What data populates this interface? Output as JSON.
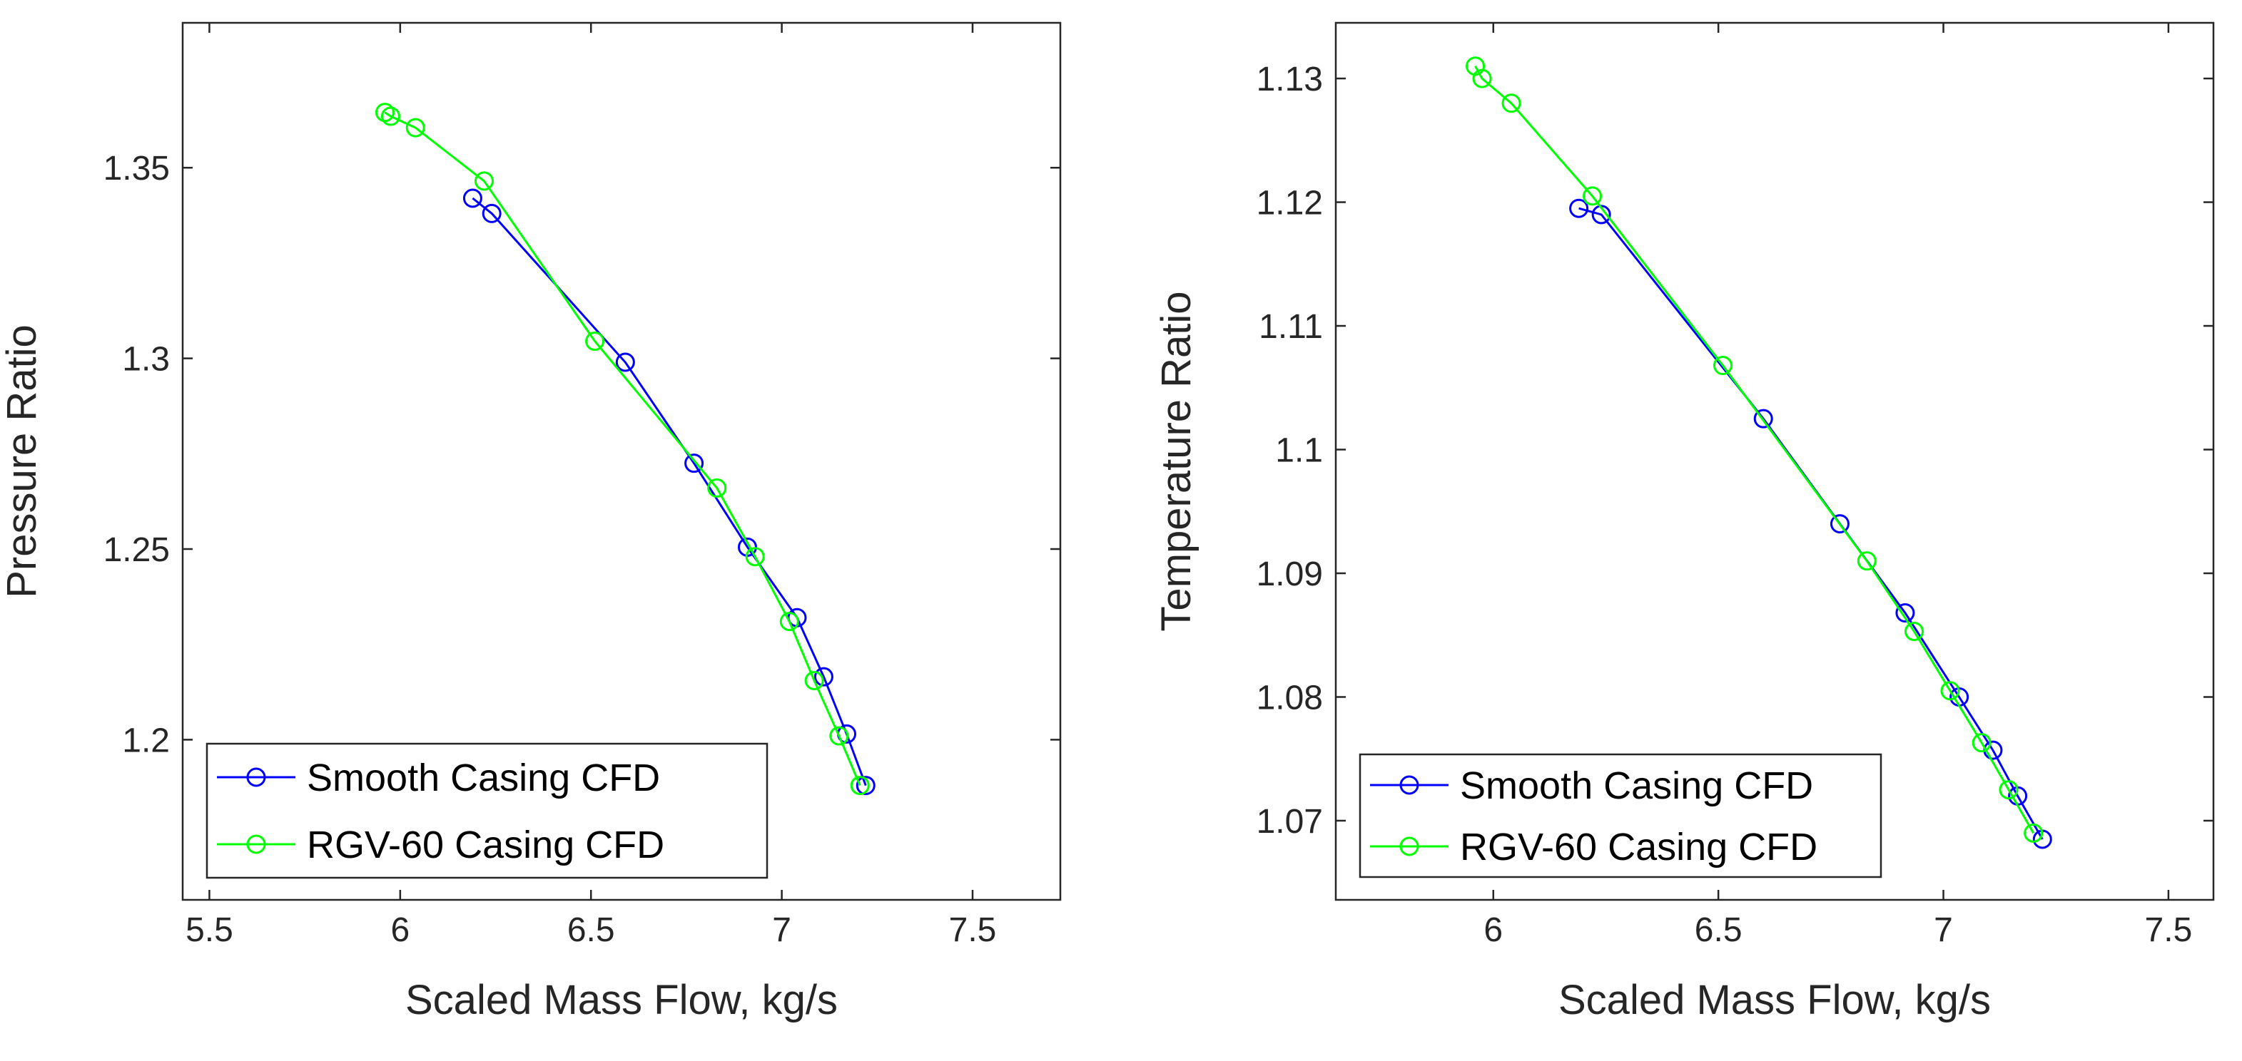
{
  "chart_data": [
    {
      "type": "line",
      "xlabel": "Scaled Mass Flow, kg/s",
      "ylabel": "Pressure Ratio",
      "xlim": [
        5.43,
        7.73
      ],
      "ylim": [
        1.158,
        1.388
      ],
      "xticks": [
        5.5,
        6,
        6.5,
        7,
        7.5
      ],
      "xtick_labels": [
        "5.5",
        "6",
        "6.5",
        "7",
        "7.5"
      ],
      "yticks": [
        1.2,
        1.25,
        1.3,
        1.35
      ],
      "ytick_labels": [
        "1.2",
        "1.25",
        "1.3",
        "1.35"
      ],
      "grid": false,
      "legend_position": "bottom-left",
      "series": [
        {
          "name": "Smooth Casing CFD",
          "color": "#0000ff",
          "marker": "circle",
          "x": [
            6.19,
            6.24,
            6.59,
            6.77,
            6.91,
            7.04,
            7.11,
            7.17,
            7.22
          ],
          "y": [
            1.342,
            1.338,
            1.299,
            1.2725,
            1.2505,
            1.232,
            1.2165,
            1.2015,
            1.188
          ]
        },
        {
          "name": "RGV-60 Casing CFD",
          "color": "#00ff00",
          "marker": "circle",
          "x": [
            5.96,
            5.975,
            6.04,
            6.22,
            6.51,
            6.83,
            6.93,
            7.02,
            7.085,
            7.15,
            7.205
          ],
          "y": [
            1.3645,
            1.3635,
            1.3605,
            1.3465,
            1.3045,
            1.266,
            1.248,
            1.231,
            1.2155,
            1.201,
            1.188
          ]
        }
      ]
    },
    {
      "type": "line",
      "xlabel": "Scaled Mass Flow, kg/s",
      "ylabel": "Temperature Ratio",
      "xlim": [
        5.65,
        7.6
      ],
      "ylim": [
        1.0636,
        1.1345
      ],
      "xticks": [
        6,
        6.5,
        7,
        7.5
      ],
      "xtick_labels": [
        "6",
        "6.5",
        "7",
        "7.5"
      ],
      "yticks": [
        1.07,
        1.08,
        1.09,
        1.1,
        1.11,
        1.12,
        1.13
      ],
      "ytick_labels": [
        "1.07",
        "1.08",
        "1.09",
        "1.1",
        "1.11",
        "1.12",
        "1.13"
      ],
      "grid": false,
      "legend_position": "bottom-left",
      "series": [
        {
          "name": "Smooth Casing CFD",
          "color": "#0000ff",
          "marker": "circle",
          "x": [
            6.19,
            6.24,
            6.6,
            6.77,
            6.915,
            7.035,
            7.11,
            7.165,
            7.22
          ],
          "y": [
            1.1195,
            1.119,
            1.1025,
            1.094,
            1.0868,
            1.08,
            1.0757,
            1.072,
            1.0685
          ]
        },
        {
          "name": "RGV-60 Casing CFD",
          "color": "#00ff00",
          "marker": "circle",
          "x": [
            5.96,
            5.975,
            6.04,
            6.22,
            6.51,
            6.83,
            6.935,
            7.015,
            7.085,
            7.145,
            7.2
          ],
          "y": [
            1.131,
            1.13,
            1.128,
            1.1205,
            1.1068,
            1.091,
            1.0853,
            1.0805,
            1.0763,
            1.0725,
            1.069
          ]
        }
      ]
    }
  ]
}
